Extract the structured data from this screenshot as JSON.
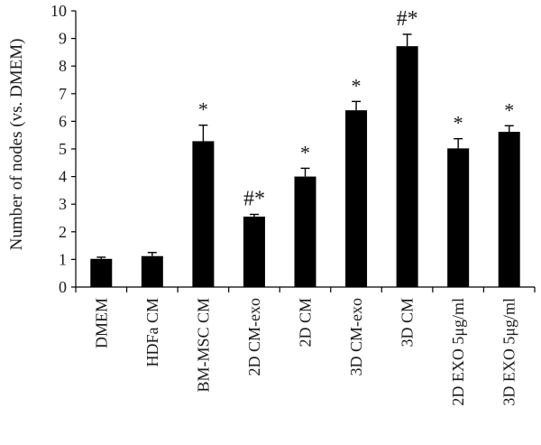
{
  "chart_data": {
    "type": "bar",
    "title": "",
    "xlabel": "",
    "ylabel": "Number of nodes (vs. DMEM)",
    "ylim": [
      0,
      10
    ],
    "yticks": [
      "0",
      "1",
      "2",
      "3",
      "4",
      "5",
      "6",
      "7",
      "8",
      "9",
      "10"
    ],
    "grid": false,
    "legend": "none",
    "categories": [
      "DMEM",
      "HDFa CM",
      "BM-MSC CM",
      "2D CM-exo",
      "2D CM",
      "3D CM-exo",
      "3D CM",
      "2D EXO 5μg/ml",
      "3D EXO 5μg/ml"
    ],
    "values": [
      1.02,
      1.12,
      5.28,
      2.55,
      4.0,
      6.4,
      8.72,
      5.02,
      5.62
    ],
    "errors": [
      0.06,
      0.13,
      0.58,
      0.08,
      0.3,
      0.32,
      0.43,
      0.35,
      0.22
    ],
    "annotations": [
      "",
      "",
      "*",
      "#*",
      "*",
      "*",
      "#*",
      "*",
      "*"
    ],
    "bar_color": "#000000"
  }
}
